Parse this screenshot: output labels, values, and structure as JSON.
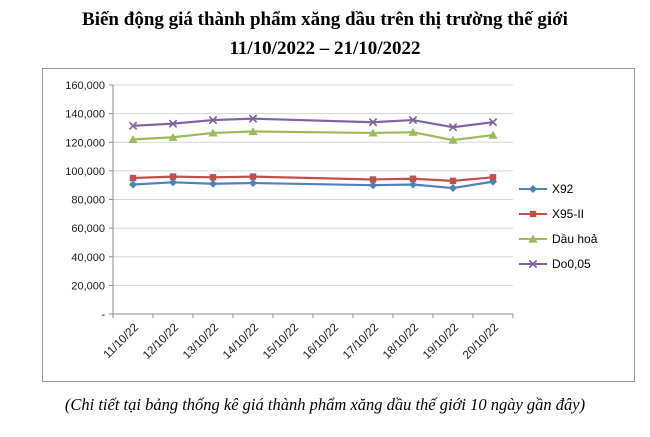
{
  "title": {
    "line1": "Biến động giá thành phẩm xăng dầu trên thị trường thế giới",
    "line2": "11/10/2022 – 21/10/2022"
  },
  "caption": "(Chi tiết tại bảng thống kê giá thành phẩm xăng dầu thế giới 10 ngày gần đây)",
  "chart_data": {
    "type": "line",
    "title": "Biến động giá thành phẩm xăng dầu trên thị trường thế giới 11/10/2022 – 21/10/2022",
    "categories": [
      "11/10/22",
      "12/10/22",
      "13/10/22",
      "14/10/22",
      "15/10/22",
      "16/10/22",
      "17/10/22",
      "18/10/22",
      "19/10/22",
      "20/10/22"
    ],
    "series": [
      {
        "name": "X92",
        "color": "#4F81BD",
        "marker": "diamond",
        "values": [
          90500,
          92000,
          91000,
          91500,
          null,
          null,
          90000,
          90500,
          88000,
          92500
        ]
      },
      {
        "name": "X95-II",
        "color": "#C0504D",
        "marker": "square",
        "values": [
          95000,
          96000,
          95500,
          96000,
          null,
          null,
          94000,
          94500,
          93000,
          95500
        ]
      },
      {
        "name": "Dầu hoả",
        "color": "#9BBB59",
        "marker": "triangle",
        "values": [
          122000,
          123500,
          126500,
          127500,
          null,
          null,
          126500,
          127000,
          121500,
          125000
        ]
      },
      {
        "name": "Do0,05",
        "color": "#8064A2",
        "marker": "x",
        "values": [
          131500,
          133000,
          135500,
          136500,
          null,
          null,
          134000,
          135500,
          130500,
          134000
        ]
      }
    ],
    "xlabel": "",
    "ylabel": "",
    "ylim": [
      0,
      160000
    ],
    "ytick_interval": 20000,
    "zero_tick_label": "-",
    "grid": true,
    "legend_position": "right"
  }
}
